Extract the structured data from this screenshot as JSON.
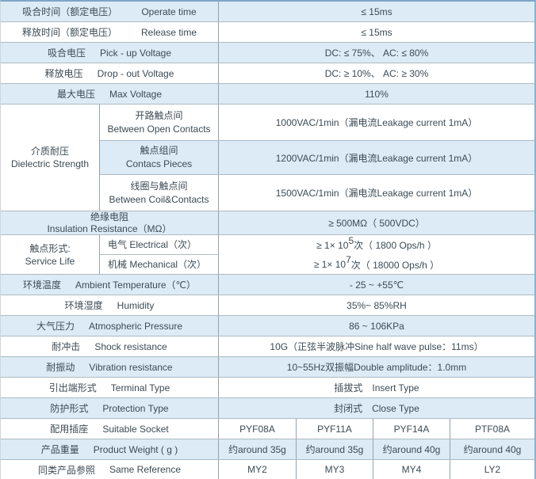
{
  "colors": {
    "row_blue": "#dcebf5",
    "border_horizontal": "#aeb9c2",
    "border_vertical": "#94a2ac",
    "outer_top": "#7da5c8",
    "outer_right": "#87b4d7",
    "text": "#3c4b55"
  },
  "rows": {
    "operate_time": {
      "zh": "吸合时间（额定电压）",
      "en": "Operate time",
      "value": "≤  15ms"
    },
    "release_time": {
      "zh": "释放时间（额定电压）",
      "en": "Release time",
      "value": "≤  15ms"
    },
    "pickup_voltage": {
      "zh": "吸合电压",
      "en": "Pick - up Voltage",
      "value": "DC: ≤  75%、 AC: ≤  80%"
    },
    "dropout_voltage": {
      "zh": "释放电压",
      "en": "Drop - out  Voltage",
      "value": "DC: ≥  10%、 AC: ≥  30%"
    },
    "max_voltage": {
      "zh": "最大电压",
      "en": "Max Voltage",
      "value": "110%"
    },
    "dielectric": {
      "zh": "介质耐压",
      "en": "Dielectric Strength",
      "sub": [
        {
          "zh": "开路触点间",
          "en": "Between Open Contacts",
          "value": "1000VAC/1min（漏电流Leakage current 1mA）"
        },
        {
          "zh": "触点组间",
          "en": "Contacs Pieces",
          "value": "1200VAC/1min（漏电流Leakage current 1mA）"
        },
        {
          "zh": "线圈与触点间",
          "en": "Between Coil&Contacts",
          "value": "1500VAC/1min（漏电流Leakage current 1mA）"
        }
      ]
    },
    "insulation": {
      "zh": "绝缘电阻",
      "en": "Insulation Resistance（MΩ）",
      "value": "≥  500MΩ（  500VDC）"
    },
    "service_life": {
      "zh": "触点形式:",
      "en": "Service Life",
      "sub": [
        {
          "label": "电气 Electrical（次）",
          "value_pre": "≥  1×  10",
          "value_sup": "5",
          "value_post": "次（ 1800 Ops/h  ）"
        },
        {
          "label": "机械 Mechanical（次）",
          "value_pre": "≥  1×  10",
          "value_sup": "7",
          "value_post": "次（ 18000 Ops/h  ）"
        }
      ]
    },
    "ambient_temperature": {
      "zh": "环境温度",
      "en": "Ambient Temperature（℃）",
      "value": "- 25 ~  +55℃"
    },
    "humidity": {
      "zh": "环境湿度",
      "en": "Humidity",
      "value": "35%~  85%RH"
    },
    "atmospheric_pressure": {
      "zh": "大气压力",
      "en": "Atmospheric Pressure",
      "value": "86 ~  106KPa"
    },
    "shock_resistance": {
      "zh": "耐冲击",
      "en": "Shock resistance",
      "value": "10G（正弦半波脉冲Sine half wave pulse：11ms）"
    },
    "vibration_resistance": {
      "zh": "耐振动",
      "en": "Vibration resistance",
      "value": "10~55Hz双振幅Double amplitude：1.0mm"
    },
    "terminal_type": {
      "zh": "引出端形式",
      "en": "Terminal Type",
      "value": "插拔式　Insert Type"
    },
    "protection_type": {
      "zh": "防护形式",
      "en": "Protection Type",
      "value": "封闭式　Close Type"
    },
    "suitable_socket": {
      "zh": "配用插座",
      "en": "Suitable Socket",
      "values": [
        "PYF08A",
        "PYF11A",
        "PYF14A",
        "PTF08A"
      ]
    },
    "product_weight": {
      "zh": "产品重量",
      "en": "Product Weight ( g )",
      "values": [
        "约around  35g",
        "约around  35g",
        "约around 40g",
        "约around 40g"
      ]
    },
    "same_reference": {
      "zh": "同类产品参照",
      "en": "Same Reference",
      "values": [
        "MY2",
        "MY3",
        "MY4",
        "LY2"
      ]
    }
  }
}
